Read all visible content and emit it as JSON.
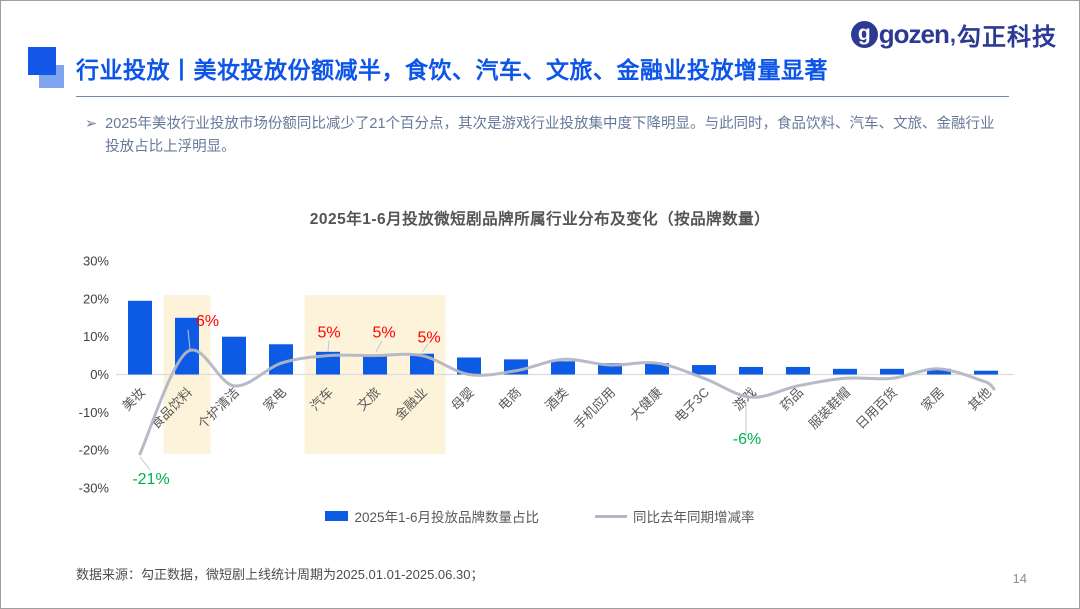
{
  "logo": {
    "latin": "gozen",
    "separator": ",",
    "cn": "勾正科技"
  },
  "header": {
    "title": "行业投放丨美妆投放份额减半，食饮、汽车、文旅、金融业投放增量显著"
  },
  "bullet": {
    "marker": "➢",
    "text": "2025年美妆行业投放市场份额同比减少了21个百分点，其次是游戏行业投放集中度下降明显。与此同时，食品饮料、汽车、文旅、金融行业投放占比上浮明显。"
  },
  "chart_data": {
    "type": "bar",
    "combo": "bar+line",
    "title": "2025年1-6月投放微短剧品牌所属行业分布及变化（按品牌数量）",
    "categories": [
      "美妆",
      "食品饮料",
      "个护清洁",
      "家电",
      "汽车",
      "文旅",
      "金融业",
      "母婴",
      "电商",
      "酒类",
      "手机应用",
      "大健康",
      "电子3C",
      "游戏",
      "药品",
      "服装鞋帽",
      "日用百货",
      "家居",
      "其他"
    ],
    "series": [
      {
        "name": "2025年1-6月投放品牌数量占比",
        "type": "bar",
        "unit": "%",
        "values": [
          19.5,
          15,
          10,
          8,
          6,
          5,
          5.5,
          4.5,
          4,
          3.5,
          3,
          3,
          2.5,
          2,
          2,
          1.5,
          1.5,
          1.5,
          1
        ]
      },
      {
        "name": "同比去年同期增减率",
        "type": "line",
        "unit": "%",
        "values": [
          -21,
          6,
          -3,
          3,
          5,
          5,
          5,
          0,
          1,
          4,
          2.5,
          3,
          -1,
          -6,
          -3,
          -1,
          -1,
          1.5,
          -2
        ]
      }
    ],
    "ylim": [
      -30,
      30
    ],
    "y_ticks": [
      "30%",
      "20%",
      "10%",
      "0%",
      "-10%",
      "-20%",
      "-30%"
    ],
    "grid": false,
    "legend_position": "bottom",
    "bar_color": "#0d5ae4",
    "line_color": "#b3b6c4",
    "highlight_color": "#fdf3da",
    "highlight_groups": [
      {
        "from": 1,
        "to": 1
      },
      {
        "from": 4,
        "to": 6
      }
    ],
    "line_tail": [
      8,
      7
    ],
    "annotations": [
      {
        "index": 0,
        "text": "-21%",
        "color": "#00b050",
        "anchor": "middle",
        "leader": [
          [
            0,
            3
          ],
          [
            10,
            16
          ]
        ],
        "label": [
          11,
          30
        ]
      },
      {
        "index": 1,
        "text": "6%",
        "color": "#ff0000",
        "anchor": "start",
        "leader": [
          [
            3,
            -2
          ],
          [
            1,
            -22
          ]
        ],
        "label": [
          9,
          -26
        ]
      },
      {
        "index": 4,
        "text": "5%",
        "color": "#ff0000",
        "anchor": "middle",
        "leader": [
          [
            0,
            -4
          ],
          [
            1,
            -15
          ]
        ],
        "label": [
          1,
          -18
        ]
      },
      {
        "index": 5,
        "text": "5%",
        "color": "#ff0000",
        "anchor": "middle",
        "leader": [
          [
            1,
            -4
          ],
          [
            7,
            -15
          ]
        ],
        "label": [
          9,
          -18
        ]
      },
      {
        "index": 6,
        "text": "5%",
        "color": "#ff0000",
        "anchor": "middle",
        "leader": [
          [
            1,
            -4
          ],
          [
            6,
            -12
          ]
        ],
        "label": [
          7,
          -13
        ]
      },
      {
        "index": 13,
        "text": "-6%",
        "color": "#00b050",
        "anchor": "middle",
        "leader": [
          [
            -5,
            4
          ],
          [
            -5,
            38
          ]
        ],
        "label": [
          -4,
          47
        ]
      }
    ]
  },
  "footer": {
    "source": "数据来源：勾正数据，微短剧上线统计周期为2025.01.01-2025.06.30；",
    "page": "14"
  }
}
